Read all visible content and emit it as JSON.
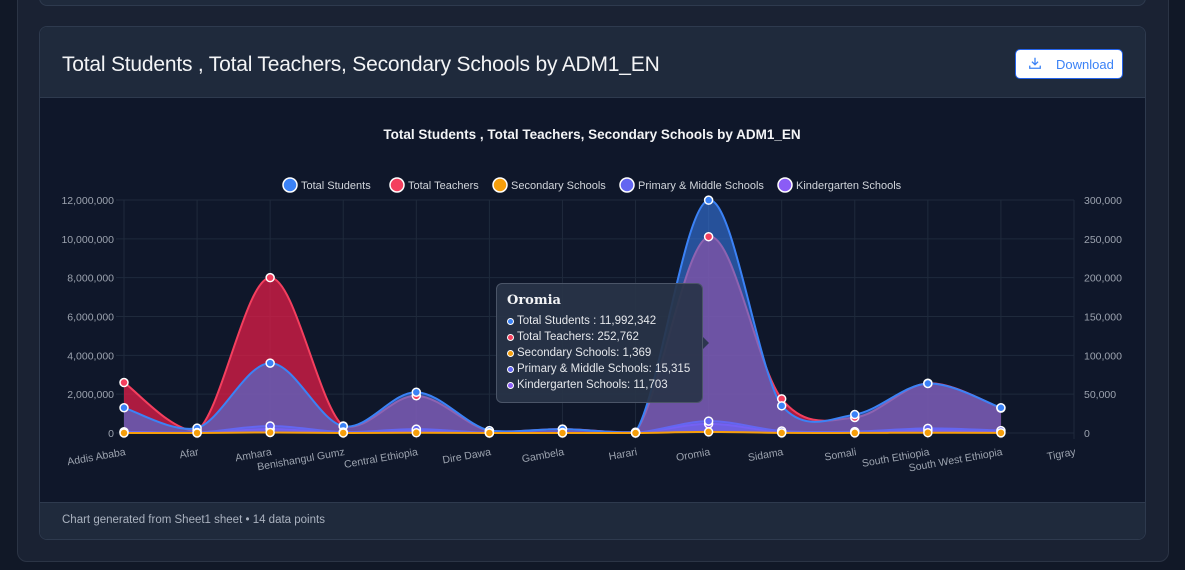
{
  "card": {
    "title": "Total Students , Total Teachers, Secondary Schools by ADM1_EN",
    "download_label": "Download",
    "footer": "Chart generated from Sheet1 sheet • 14 data points"
  },
  "chart_data": {
    "type": "area",
    "title": "Total Students , Total Teachers, Secondary Schools by ADM1_EN",
    "categories": [
      "Addis Ababa",
      "Afar",
      "Amhara",
      "Benishangul Gumz",
      "Central Ethiopia",
      "Dire Dawa",
      "Gambela",
      "Harari",
      "Oromia",
      "Sidama",
      "Somali",
      "South Ethiopia",
      "South West Ethiopia",
      "Tigray"
    ],
    "legend_position": "top",
    "grid": true,
    "y_left": {
      "min": 0,
      "max": 12000000,
      "ticks": [
        "0",
        "2,000,000",
        "4,000,000",
        "6,000,000",
        "8,000,000",
        "10,000,000",
        "12,000,000"
      ]
    },
    "y_right": {
      "min": 0,
      "max": 300000,
      "ticks": [
        "0",
        "50,000",
        "100,000",
        "150,000",
        "200,000",
        "250,000",
        "300,000"
      ]
    },
    "series": [
      {
        "name": "Total Students",
        "axis": "left",
        "color": "#3b82f6",
        "values": [
          1300000,
          250000,
          3600000,
          350000,
          2100000,
          120000,
          200000,
          40000,
          11992342,
          1400000,
          950000,
          2550000,
          1300000,
          null
        ]
      },
      {
        "name": "Total Teachers",
        "axis": "right",
        "color": "#f43f5e",
        "values": [
          65000,
          3000,
          200000,
          9000,
          48000,
          2500,
          5000,
          1000,
          252762,
          44000,
          20000,
          64000,
          32000,
          null
        ]
      },
      {
        "name": "Secondary Schools",
        "axis": "right",
        "color": "#f59e0b",
        "values": [
          50,
          40,
          700,
          60,
          250,
          20,
          40,
          10,
          1369,
          150,
          100,
          400,
          200,
          null
        ]
      },
      {
        "name": "Primary & Middle Schools",
        "axis": "right",
        "color": "#6366f1",
        "values": [
          1500,
          700,
          9000,
          1300,
          5000,
          300,
          600,
          200,
          15315,
          2600,
          1800,
          6000,
          3100,
          null
        ]
      },
      {
        "name": "Kindergarten Schools",
        "axis": "right",
        "color": "#8b5cf6",
        "values": [
          1500,
          300,
          5000,
          500,
          3000,
          150,
          250,
          100,
          11703,
          1200,
          900,
          3500,
          1500,
          null
        ]
      }
    ]
  },
  "tooltip": {
    "title": "Oromia",
    "rows": [
      {
        "text": "Total Students : 11,992,342",
        "color": "#3b82f6"
      },
      {
        "text": "Total Teachers: 252,762",
        "color": "#f43f5e"
      },
      {
        "text": "Secondary Schools: 1,369",
        "color": "#f59e0b"
      },
      {
        "text": "Primary & Middle Schools: 15,315",
        "color": "#6366f1"
      },
      {
        "text": "Kindergarten Schools: 11,703",
        "color": "#8b5cf6"
      }
    ]
  },
  "icons": {
    "download": "download-icon"
  }
}
